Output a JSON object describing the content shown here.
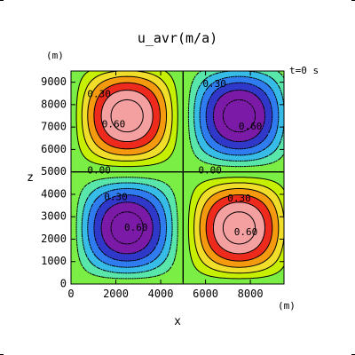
{
  "chart_data": {
    "type": "heatmap",
    "title": "u_avr(m/a)",
    "time_label": "t=0  s",
    "xlabel": "x",
    "ylabel": "z",
    "x_unit": "(m)",
    "y_unit": "(m)",
    "xlim": [
      0,
      9500
    ],
    "ylim": [
      0,
      9500
    ],
    "x_ticks": [
      0,
      2000,
      4000,
      6000,
      8000
    ],
    "y_ticks": [
      0,
      1000,
      2000,
      3000,
      4000,
      5000,
      6000,
      7000,
      8000,
      9000
    ],
    "x_tick_labels": [
      "0",
      "2000",
      "4000",
      "6000",
      "8000"
    ],
    "y_tick_labels": [
      "0",
      "1000",
      "2000",
      "3000",
      "4000",
      "5000",
      "6000",
      "7000",
      "8000",
      "9000"
    ],
    "field": {
      "form": "-sin(pi*x/5000)*sin(pi*z/5000)",
      "amplitude": 1.0
    },
    "contour_levels": [
      -0.9,
      -0.75,
      -0.6,
      -0.45,
      -0.3,
      -0.15,
      0.0,
      0.15,
      0.3,
      0.45,
      0.6,
      0.75,
      0.9
    ],
    "contour_labels": [
      {
        "text": "0.30",
        "x": 1250,
        "z": 8450
      },
      {
        "text": "0.60",
        "x": 1900,
        "z": 7100
      },
      {
        "text": "0.30",
        "x": 6400,
        "z": 8900
      },
      {
        "text": "0.60",
        "x": 8000,
        "z": 7000
      },
      {
        "text": "0.00",
        "x": 1250,
        "z": 5050
      },
      {
        "text": "0.00",
        "x": 6200,
        "z": 5050
      },
      {
        "text": "0.30",
        "x": 2000,
        "z": 3850
      },
      {
        "text": "0.60",
        "x": 2900,
        "z": 2500
      },
      {
        "text": "0.30",
        "x": 7500,
        "z": 3800
      },
      {
        "text": "0.60",
        "x": 7800,
        "z": 2300
      }
    ],
    "colors": {
      "bands": [
        "#7a1aa6",
        "#2f38c8",
        "#2f7cf0",
        "#37bce8",
        "#58e6aa",
        "#7aee44",
        "#7aee44",
        "#c6f000",
        "#f0de2a",
        "#f59a0e",
        "#ee2a1c",
        "#f5a0a0"
      ],
      "line": "#000000"
    },
    "grid": false,
    "legend": "none"
  }
}
